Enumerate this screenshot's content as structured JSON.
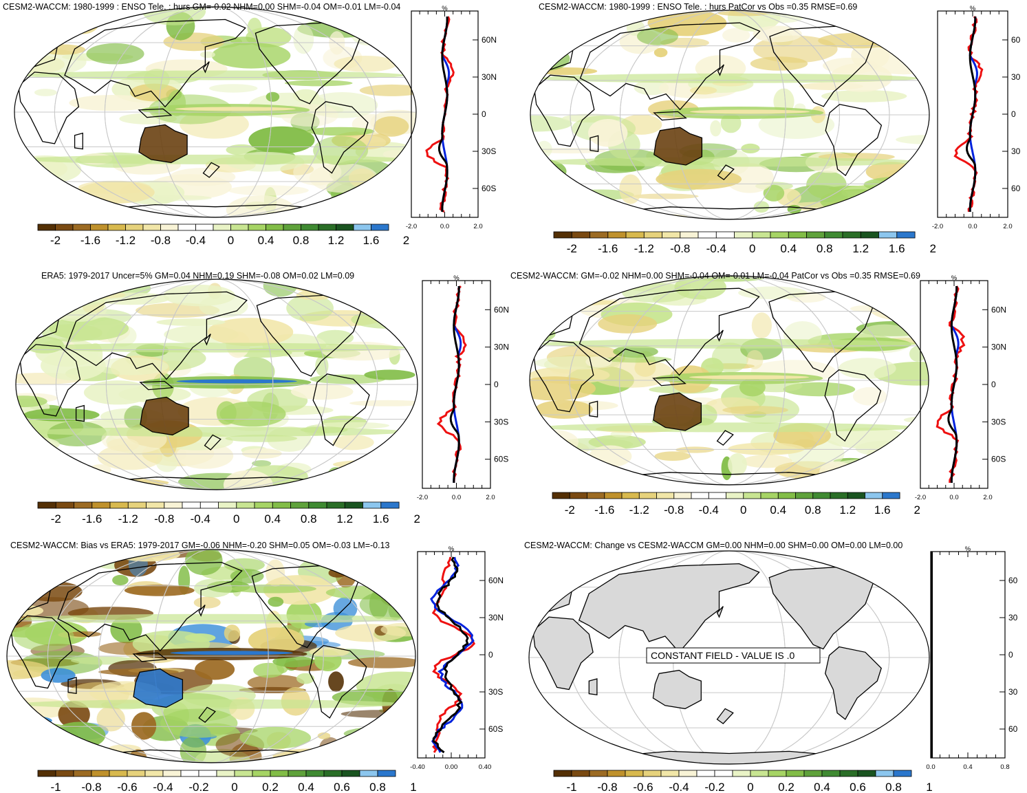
{
  "colors": {
    "bar_colors": [
      "#543005",
      "#7a4a12",
      "#9c6b23",
      "#bf912c",
      "#d8b94e",
      "#e6d27c",
      "#f1e6a8",
      "#f8f3d6",
      "#ffffff",
      "#ffffff",
      "#e9f3c6",
      "#c8e592",
      "#a6d465",
      "#82bd47",
      "#5fa23b",
      "#3f8a32",
      "#2a6e27",
      "#1a5420",
      "#8cc6ee",
      "#2b77cc"
    ],
    "model_line": "#000000",
    "obs_line": "#0022dd",
    "diff_line": "#ee1111",
    "land_gray": "#d9d9d9",
    "graticule": "#c8c8c8"
  },
  "panels": [
    {
      "id": "p1",
      "title": "CESM2-WACCM: 1980-1999 : ENSO Tele. : hurs GM=-0.02 NHM=0.00 SHM=-0.04 OM=-0.01 LM=-0.04",
      "colorbar_labels": [
        "-2",
        "-1.6",
        "-1.2",
        "-0.8",
        "-0.4",
        "0",
        "0.4",
        "0.8",
        "1.2",
        "1.6",
        "2"
      ],
      "zonal_unit": "%",
      "zonal_xticks": [
        "-2.0",
        "0.0",
        "2.0"
      ],
      "zonal_lat_labels": [
        "60N",
        "30N",
        "0",
        "30S",
        "60S"
      ]
    },
    {
      "id": "p2",
      "title": "CESM2-WACCM: 1980-1999 : ENSO Tele. : hurs PatCor vs Obs =0.35 RMSE=0.69",
      "colorbar_labels": [
        "-2",
        "-1.6",
        "-1.2",
        "-0.8",
        "-0.4",
        "0",
        "0.4",
        "0.8",
        "1.2",
        "1.6",
        "2"
      ],
      "zonal_unit": "%",
      "zonal_xticks": [
        "-2.0",
        "0.0",
        "2.0"
      ],
      "zonal_lat_labels": [
        "60",
        "30",
        "0",
        "30",
        "60"
      ]
    },
    {
      "id": "p3",
      "title": "ERA5: 1979-2017 Uncer=5% GM=0.04 NHM=0.19 SHM=-0.08 OM=0.02 LM=0.09",
      "colorbar_labels": [
        "-2",
        "-1.6",
        "-1.2",
        "-0.8",
        "-0.4",
        "0",
        "0.4",
        "0.8",
        "1.2",
        "1.6",
        "2"
      ],
      "zonal_unit": "%",
      "zonal_xticks": [
        "-2.0",
        "0.0",
        "2.0"
      ],
      "zonal_lat_labels": [
        "60N",
        "30N",
        "0",
        "30S",
        "60S"
      ]
    },
    {
      "id": "p4",
      "title": "CESM2-WACCM: GM=-0.02 NHM=0.00 SHM=-0.04 OM=-0.01 LM=-0.04 PatCor vs Obs =0.35 RMSE=0.69",
      "colorbar_labels": [
        "-2",
        "-1.6",
        "-1.2",
        "-0.8",
        "-0.4",
        "0",
        "0.4",
        "0.8",
        "1.2",
        "1.6",
        "2"
      ],
      "zonal_unit": "%",
      "zonal_xticks": [
        "-2.0",
        "0.0",
        "2.0"
      ],
      "zonal_lat_labels": [
        "60N",
        "30N",
        "0",
        "30S",
        "60S"
      ]
    },
    {
      "id": "p5",
      "title": "CESM2-WACCM: Bias vs ERA5: 1979-2017 GM=-0.06 NHM=-0.20 SHM=0.05 OM=-0.03 LM=-0.13",
      "colorbar_labels": [
        "-1",
        "-0.8",
        "-0.6",
        "-0.4",
        "-0.2",
        "0",
        "0.2",
        "0.4",
        "0.6",
        "0.8",
        "1"
      ],
      "zonal_unit": "%",
      "zonal_xticks": [
        "-0.40",
        "0.00",
        "0.40"
      ],
      "zonal_lat_labels": [
        "60N",
        "30N",
        "0",
        "30S",
        "60S"
      ]
    },
    {
      "id": "p6",
      "title": "CESM2-WACCM: Change vs CESM2-WACCM GM=0.00 NHM=0.00 SHM=0.00 OM=0.00 LM=0.00",
      "colorbar_labels": [
        "-1",
        "-0.8",
        "-0.6",
        "-0.4",
        "-0.2",
        "0",
        "0.2",
        "0.4",
        "0.6",
        "0.8",
        "1"
      ],
      "zonal_unit": "%",
      "zonal_xticks": [
        "0.0",
        "0.4",
        "0.8"
      ],
      "zonal_lat_labels": [
        "60",
        "30",
        "0",
        "30",
        "60"
      ],
      "constant_note": "CONSTANT FIELD - VALUE IS .0"
    }
  ],
  "chart_data": [
    {
      "type": "heatmap",
      "title": "CESM2-WACCM: 1980-1999 : ENSO Tele. : hurs GM=-0.02 NHM=0.00 SHM=-0.04 OM=-0.01 LM=-0.04",
      "colorbar": {
        "min": -2,
        "max": 2,
        "ticks": [
          -2,
          -1.6,
          -1.2,
          -0.8,
          -0.4,
          0,
          0.4,
          0.8,
          1.2,
          1.6,
          2
        ]
      },
      "zonal_mean": {
        "unit": "%",
        "xlim": [
          -2,
          2
        ],
        "lat_ticks": [
          "60N",
          "30N",
          "0",
          "30S",
          "60S"
        ]
      }
    },
    {
      "type": "heatmap",
      "title": "CESM2-WACCM: 1980-1999 : ENSO Tele. : hurs PatCor vs Obs =0.35 RMSE=0.69",
      "colorbar": {
        "min": -2,
        "max": 2,
        "ticks": [
          -2,
          -1.6,
          -1.2,
          -0.8,
          -0.4,
          0,
          0.4,
          0.8,
          1.2,
          1.6,
          2
        ]
      },
      "zonal_mean": {
        "unit": "%",
        "xlim": [
          -2,
          2
        ]
      }
    },
    {
      "type": "heatmap",
      "title": "ERA5: 1979-2017 Uncer=5% GM=0.04 NHM=0.19 SHM=-0.08 OM=0.02 LM=0.09",
      "colorbar": {
        "min": -2,
        "max": 2,
        "ticks": [
          -2,
          -1.6,
          -1.2,
          -0.8,
          -0.4,
          0,
          0.4,
          0.8,
          1.2,
          1.6,
          2
        ]
      },
      "zonal_mean": {
        "unit": "%",
        "xlim": [
          -2,
          2
        ],
        "lat_ticks": [
          "60N",
          "30N",
          "0",
          "30S",
          "60S"
        ]
      }
    },
    {
      "type": "heatmap",
      "title": "CESM2-WACCM: GM=-0.02 NHM=0.00 SHM=-0.04 OM=-0.01 LM=-0.04 PatCor vs Obs =0.35 RMSE=0.69",
      "colorbar": {
        "min": -2,
        "max": 2,
        "ticks": [
          -2,
          -1.6,
          -1.2,
          -0.8,
          -0.4,
          0,
          0.4,
          0.8,
          1.2,
          1.6,
          2
        ]
      },
      "zonal_mean": {
        "unit": "%",
        "xlim": [
          -2,
          2
        ],
        "lat_ticks": [
          "60N",
          "30N",
          "0",
          "30S",
          "60S"
        ]
      }
    },
    {
      "type": "heatmap",
      "title": "CESM2-WACCM: Bias vs ERA5: 1979-2017 GM=-0.06 NHM=-0.20 SHM=0.05 OM=-0.03 LM=-0.13",
      "colorbar": {
        "min": -1,
        "max": 1,
        "ticks": [
          -1,
          -0.8,
          -0.6,
          -0.4,
          -0.2,
          0,
          0.2,
          0.4,
          0.6,
          0.8,
          1
        ]
      },
      "zonal_mean": {
        "unit": "%",
        "xlim": [
          -0.4,
          0.4
        ],
        "lat_ticks": [
          "60N",
          "30N",
          "0",
          "30S",
          "60S"
        ]
      }
    },
    {
      "type": "heatmap",
      "title": "CESM2-WACCM: Change vs CESM2-WACCM GM=0.00 NHM=0.00 SHM=0.00 OM=0.00 LM=0.00",
      "colorbar": {
        "min": -1,
        "max": 1,
        "ticks": [
          -1,
          -0.8,
          -0.6,
          -0.4,
          -0.2,
          0,
          0.2,
          0.4,
          0.6,
          0.8,
          1
        ]
      },
      "zonal_mean": {
        "unit": "%",
        "xlim": [
          0,
          0.8
        ]
      },
      "value": 0
    }
  ]
}
